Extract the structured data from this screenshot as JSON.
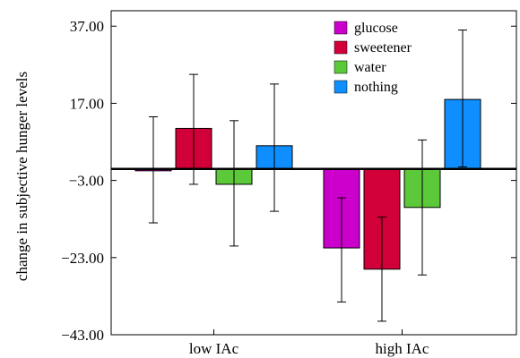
{
  "chart_data": {
    "type": "bar",
    "title": "",
    "xlabel": "",
    "ylabel": "change in subjective hunger levels",
    "ylim": [
      -43,
      41
    ],
    "yticks": [
      37,
      17,
      -3,
      -23,
      -43
    ],
    "ytick_labels": [
      "37.00",
      "17.00",
      "−3.00",
      "−23.00",
      "−43.00"
    ],
    "categories": [
      "low IAc",
      "high IAc"
    ],
    "baseline": 0,
    "grid": false,
    "legend_position": "top-right",
    "series": [
      {
        "name": "glucose",
        "color": "#cc00cc",
        "values": [
          -0.5,
          -20.5
        ],
        "err_low": [
          -14,
          -34.5
        ],
        "err_high": [
          13.5,
          -7.5
        ]
      },
      {
        "name": "sweetener",
        "color": "#d10038",
        "values": [
          10.5,
          -26
        ],
        "err_low": [
          -4,
          -39.5
        ],
        "err_high": [
          24.5,
          -12.5
        ]
      },
      {
        "name": "water",
        "color": "#5cc93a",
        "values": [
          -4,
          -10
        ],
        "err_low": [
          -20,
          -27.5
        ],
        "err_high": [
          12.5,
          7.5
        ]
      },
      {
        "name": "nothing",
        "color": "#0f8fff",
        "values": [
          6,
          18
        ],
        "err_low": [
          -11,
          0.5
        ],
        "err_high": [
          22,
          36
        ]
      }
    ]
  }
}
